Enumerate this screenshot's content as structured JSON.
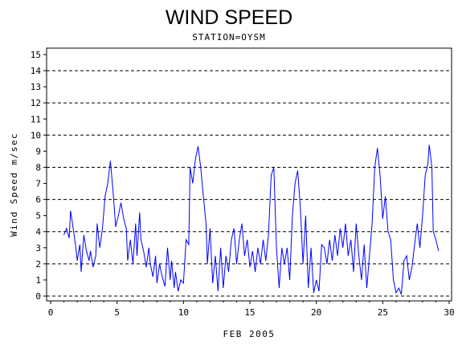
{
  "chart_data": {
    "type": "line",
    "title": "WIND SPEED",
    "subtitle": "STATION=OYSM",
    "xlabel": "FEB 2005",
    "ylabel": "Wind Speed m/sec",
    "xlim": [
      0,
      30
    ],
    "ylim": [
      0,
      15.4
    ],
    "x_ticks": [
      0,
      5,
      10,
      15,
      20,
      25,
      30
    ],
    "y_ticks": [
      0,
      1,
      2,
      3,
      4,
      5,
      6,
      7,
      8,
      9,
      10,
      11,
      12,
      13,
      14,
      15
    ],
    "gridlines_y": [
      2,
      4,
      6,
      8,
      10,
      12,
      14
    ],
    "grid": "horizontal dashed at even values",
    "line_color": "#0000ff",
    "series": [
      {
        "values": [
          [
            1.0,
            3.8
          ],
          [
            1.2,
            4.2
          ],
          [
            1.4,
            3.6
          ],
          [
            1.5,
            5.3
          ],
          [
            1.7,
            4.2
          ],
          [
            1.9,
            3.0
          ],
          [
            2.0,
            2.2
          ],
          [
            2.2,
            3.2
          ],
          [
            2.3,
            1.5
          ],
          [
            2.5,
            3.8
          ],
          [
            2.7,
            2.8
          ],
          [
            2.9,
            2.2
          ],
          [
            3.0,
            2.8
          ],
          [
            3.2,
            1.8
          ],
          [
            3.4,
            2.5
          ],
          [
            3.5,
            4.5
          ],
          [
            3.7,
            3.0
          ],
          [
            3.9,
            4.2
          ],
          [
            4.1,
            6.2
          ],
          [
            4.3,
            7.0
          ],
          [
            4.5,
            8.4
          ],
          [
            4.7,
            6.5
          ],
          [
            4.9,
            4.3
          ],
          [
            5.1,
            5.0
          ],
          [
            5.3,
            5.8
          ],
          [
            5.5,
            4.8
          ],
          [
            5.7,
            4.2
          ],
          [
            5.8,
            2.2
          ],
          [
            6.0,
            3.5
          ],
          [
            6.2,
            2.0
          ],
          [
            6.4,
            4.5
          ],
          [
            6.5,
            2.5
          ],
          [
            6.7,
            5.2
          ],
          [
            6.8,
            3.5
          ],
          [
            7.0,
            2.8
          ],
          [
            7.2,
            1.8
          ],
          [
            7.4,
            3.0
          ],
          [
            7.5,
            2.0
          ],
          [
            7.7,
            1.2
          ],
          [
            7.9,
            2.5
          ],
          [
            8.0,
            0.8
          ],
          [
            8.2,
            2.0
          ],
          [
            8.4,
            1.2
          ],
          [
            8.6,
            0.6
          ],
          [
            8.8,
            3.0
          ],
          [
            9.0,
            1.0
          ],
          [
            9.1,
            2.2
          ],
          [
            9.3,
            0.5
          ],
          [
            9.4,
            1.5
          ],
          [
            9.6,
            0.3
          ],
          [
            9.8,
            1.0
          ],
          [
            10.0,
            0.8
          ],
          [
            10.2,
            3.5
          ],
          [
            10.4,
            3.2
          ],
          [
            10.5,
            8.0
          ],
          [
            10.7,
            7.0
          ],
          [
            10.9,
            8.5
          ],
          [
            11.1,
            9.3
          ],
          [
            11.3,
            8.0
          ],
          [
            11.5,
            6.2
          ],
          [
            11.7,
            4.5
          ],
          [
            11.8,
            2.0
          ],
          [
            12.0,
            4.2
          ],
          [
            12.2,
            0.8
          ],
          [
            12.4,
            2.5
          ],
          [
            12.6,
            0.3
          ],
          [
            12.8,
            3.0
          ],
          [
            13.0,
            0.5
          ],
          [
            13.2,
            2.5
          ],
          [
            13.4,
            1.5
          ],
          [
            13.6,
            3.5
          ],
          [
            13.8,
            4.2
          ],
          [
            14.0,
            2.0
          ],
          [
            14.2,
            3.5
          ],
          [
            14.4,
            4.5
          ],
          [
            14.6,
            2.5
          ],
          [
            14.8,
            3.5
          ],
          [
            15.0,
            1.8
          ],
          [
            15.2,
            2.8
          ],
          [
            15.4,
            1.5
          ],
          [
            15.6,
            3.0
          ],
          [
            15.8,
            2.0
          ],
          [
            16.0,
            3.5
          ],
          [
            16.2,
            2.2
          ],
          [
            16.4,
            3.8
          ],
          [
            16.6,
            7.5
          ],
          [
            16.8,
            8.0
          ],
          [
            17.0,
            3.0
          ],
          [
            17.2,
            0.5
          ],
          [
            17.4,
            3.0
          ],
          [
            17.6,
            2.0
          ],
          [
            17.8,
            3.0
          ],
          [
            18.0,
            1.0
          ],
          [
            18.2,
            5.0
          ],
          [
            18.4,
            7.0
          ],
          [
            18.6,
            7.8
          ],
          [
            18.8,
            5.5
          ],
          [
            19.0,
            2.0
          ],
          [
            19.2,
            5.0
          ],
          [
            19.4,
            0.5
          ],
          [
            19.6,
            3.0
          ],
          [
            19.8,
            0.2
          ],
          [
            20.0,
            1.0
          ],
          [
            20.2,
            0.3
          ],
          [
            20.4,
            3.2
          ],
          [
            20.6,
            3.0
          ],
          [
            20.8,
            2.0
          ],
          [
            21.0,
            3.5
          ],
          [
            21.2,
            2.2
          ],
          [
            21.4,
            3.8
          ],
          [
            21.6,
            2.5
          ],
          [
            21.8,
            4.2
          ],
          [
            22.0,
            3.0
          ],
          [
            22.2,
            4.5
          ],
          [
            22.4,
            2.5
          ],
          [
            22.6,
            3.5
          ],
          [
            22.8,
            1.5
          ],
          [
            23.0,
            4.5
          ],
          [
            23.2,
            2.5
          ],
          [
            23.4,
            1.0
          ],
          [
            23.6,
            3.2
          ],
          [
            23.8,
            0.5
          ],
          [
            24.0,
            2.5
          ],
          [
            24.2,
            4.5
          ],
          [
            24.4,
            8.0
          ],
          [
            24.6,
            9.2
          ],
          [
            24.8,
            7.5
          ],
          [
            25.0,
            4.8
          ],
          [
            25.2,
            6.2
          ],
          [
            25.4,
            4.0
          ],
          [
            25.6,
            3.5
          ],
          [
            25.8,
            1.0
          ],
          [
            26.0,
            0.2
          ],
          [
            26.2,
            0.5
          ],
          [
            26.4,
            0.1
          ],
          [
            26.6,
            2.2
          ],
          [
            26.8,
            2.5
          ],
          [
            27.0,
            1.0
          ],
          [
            27.2,
            1.8
          ],
          [
            27.4,
            3.2
          ],
          [
            27.6,
            4.5
          ],
          [
            27.8,
            3.0
          ],
          [
            28.0,
            5.0
          ],
          [
            28.2,
            7.5
          ],
          [
            28.4,
            8.2
          ],
          [
            28.5,
            9.4
          ],
          [
            28.7,
            8.0
          ],
          [
            28.8,
            4.0
          ],
          [
            29.0,
            3.5
          ],
          [
            29.2,
            2.8
          ]
        ]
      }
    ]
  }
}
